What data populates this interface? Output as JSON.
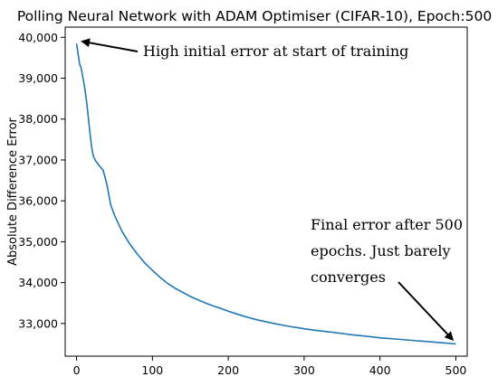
{
  "chart_data": {
    "type": "line",
    "title": "Polling Neural Network with ADAM Optimiser (CIFAR-10), Epoch:500",
    "xlabel": "",
    "ylabel": "Absolute Difference Error",
    "xlim": [
      -15,
      515
    ],
    "ylim": [
      32200,
      40250
    ],
    "x_ticks": [
      0,
      100,
      200,
      300,
      400,
      500
    ],
    "y_ticks": [
      33000,
      34000,
      35000,
      36000,
      37000,
      38000,
      39000,
      40000
    ],
    "y_tick_labels": [
      "33,000",
      "34,000",
      "35,000",
      "36,000",
      "37,000",
      "38,000",
      "39,000",
      "40,000"
    ],
    "series_color": "#1f77b4",
    "series": [
      {
        "x": [
          0,
          2,
          4,
          6,
          8,
          10,
          12,
          14,
          16,
          18,
          20,
          22,
          25,
          30,
          35,
          40,
          45,
          50,
          55,
          60,
          70,
          80,
          90,
          100,
          110,
          120,
          130,
          140,
          150,
          160,
          170,
          180,
          190,
          200,
          220,
          240,
          260,
          280,
          300,
          320,
          340,
          360,
          380,
          400,
          420,
          440,
          460,
          480,
          490,
          500
        ],
        "y": [
          39850,
          39600,
          39350,
          39250,
          39050,
          38850,
          38600,
          38300,
          37950,
          37600,
          37300,
          37100,
          36980,
          36860,
          36750,
          36400,
          35900,
          35650,
          35450,
          35250,
          34950,
          34700,
          34480,
          34300,
          34130,
          33980,
          33860,
          33760,
          33660,
          33580,
          33500,
          33430,
          33370,
          33300,
          33180,
          33080,
          33000,
          32930,
          32870,
          32820,
          32780,
          32730,
          32690,
          32650,
          32620,
          32590,
          32560,
          32530,
          32515,
          32500
        ]
      }
    ],
    "annotations": [
      {
        "lines": [
          "High initial error at start of training"
        ],
        "arrow_to": [
          3,
          39900
        ]
      },
      {
        "lines": [
          "Final error after 500",
          "epochs. Just barely",
          "converges"
        ],
        "arrow_to": [
          498,
          32520
        ]
      }
    ]
  }
}
